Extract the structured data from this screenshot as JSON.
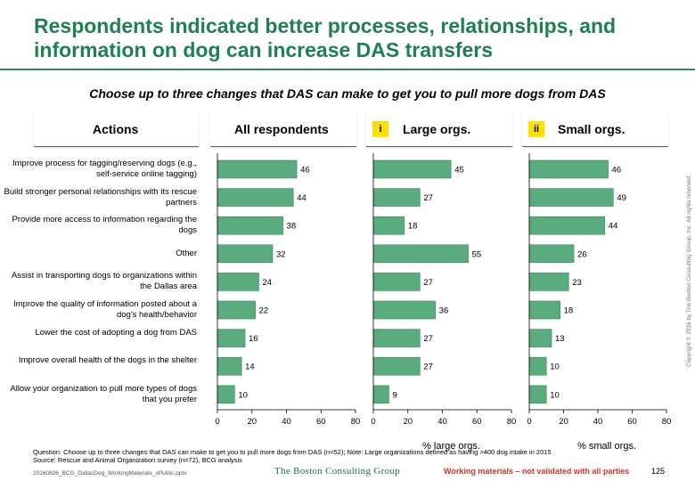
{
  "title": "Respondents indicated better processes, relationships, and information on dog can increase DAS transfers",
  "subtitle": "Choose up to three changes that DAS can make to get you to pull more dogs from DAS",
  "headers": {
    "actions": "Actions",
    "all": "All respondents",
    "large": "Large orgs.",
    "small": "Small orgs.",
    "large_badge": "i",
    "small_badge": "ii"
  },
  "colors": {
    "bar": "#5aab7d",
    "bar_border": "#3d8a5e",
    "title": "#1f7f55",
    "badge": "#ffe000",
    "warning": "#e0301e"
  },
  "actions": [
    "Improve process for tagging/reserving dogs (e.g., self-service online tagging)",
    "Build stronger personal relationships with its rescue partners",
    "Provide more access to information regarding the dogs",
    "Other",
    "Assist in transporting dogs to organizations within the Dallas area",
    "Improve the quality of information posted about a dog's health/behavior",
    "Lower the cost of adopting a dog from DAS",
    "Improve overall health of the dogs in the shelter",
    "Allow your organization to pull more types of dogs that you prefer"
  ],
  "chart_data": [
    {
      "type": "bar",
      "orientation": "horizontal",
      "title": "All respondents",
      "xlabel": "",
      "xlim": [
        0,
        80
      ],
      "ticks": [
        0,
        20,
        40,
        60,
        80
      ],
      "categories_ref": "actions",
      "values": [
        46,
        44,
        38,
        32,
        24,
        22,
        16,
        14,
        10
      ]
    },
    {
      "type": "bar",
      "orientation": "horizontal",
      "title": "Large orgs.",
      "xlabel": "% large orgs.",
      "xlim": [
        0,
        80
      ],
      "ticks": [
        0,
        20,
        40,
        60,
        80
      ],
      "categories_ref": "actions",
      "values": [
        45,
        27,
        18,
        55,
        27,
        36,
        27,
        27,
        9
      ]
    },
    {
      "type": "bar",
      "orientation": "horizontal",
      "title": "Small orgs.",
      "xlabel": "% small orgs.",
      "xlim": [
        0,
        80
      ],
      "ticks": [
        0,
        20,
        40,
        60,
        80
      ],
      "categories_ref": "actions",
      "values": [
        46,
        49,
        44,
        26,
        23,
        18,
        13,
        10,
        10
      ]
    }
  ],
  "footnote_line1": "Question: Choose up to three changes that DAS can make to get you to pull more dogs from DAS (n=52); Note: Large organizations defined as having >400 dog intake in 2015",
  "footnote_line2": "Source: Rescue and Animal Organization survey (n=72), BCG analysis",
  "filename": "20160826_BCG_DallasDog_WorkingMaterials_vPublic.pptx",
  "brand": "The Boston Consulting Group",
  "working_materials": "Working materials – not validated with all parties",
  "page_number": "125",
  "copyright": "Copyright © 2016 by The Boston Consulting Group, Inc. All rights reserved."
}
